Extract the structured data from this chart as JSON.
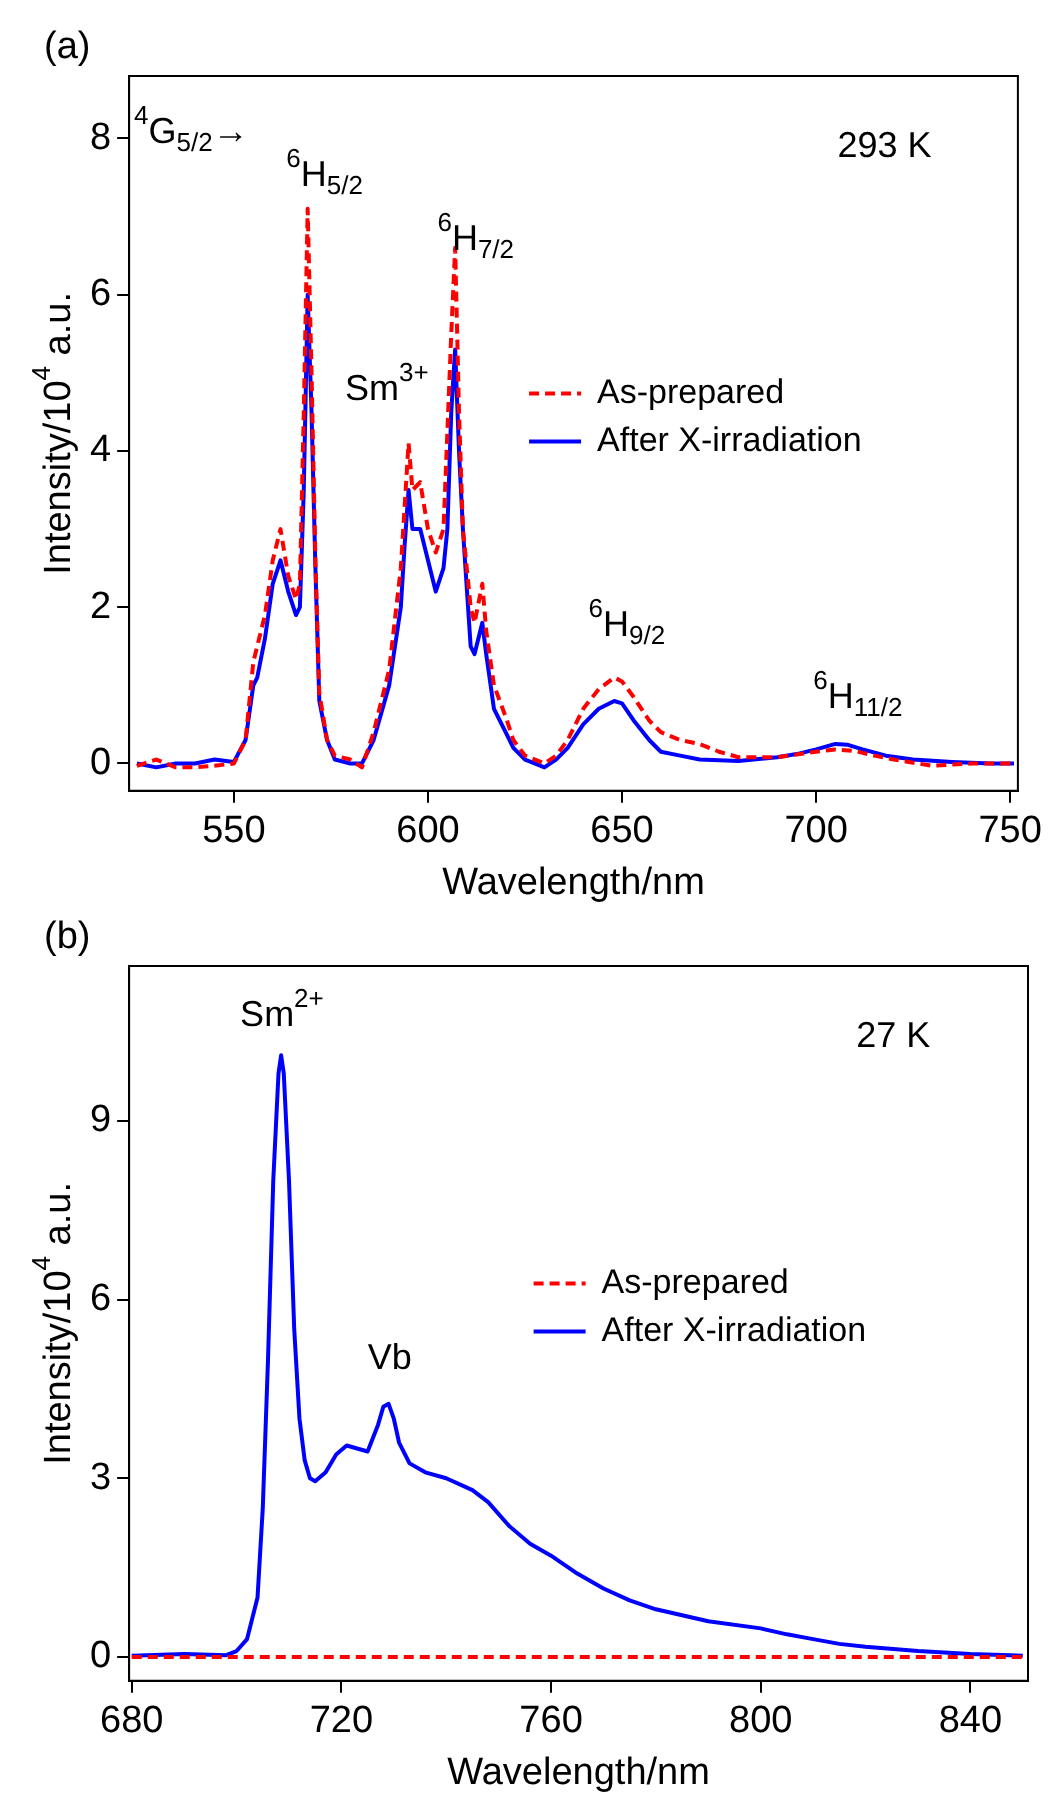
{
  "chart_data": [
    {
      "type": "line",
      "title": "(a)",
      "xlabel": "Wavelength/nm",
      "ylabel": "Intensity/10$^{4}$ a.u.",
      "xlim": [
        523,
        752
      ],
      "ylim": [
        -0.35,
        8.8
      ],
      "xticks": [
        550,
        600,
        650,
        700,
        750
      ],
      "yticks": [
        0,
        2,
        4,
        6,
        8
      ],
      "grid": false,
      "legend": "right",
      "marker": "none",
      "series": [
        {
          "name": "As-prepared",
          "color": "#ff0000",
          "line_style": "dashed",
          "x": [
            525,
            530,
            535,
            540,
            545,
            550,
            553,
            555,
            558,
            560,
            562,
            564,
            566,
            567,
            568,
            569,
            570,
            571,
            572,
            574,
            576,
            580,
            583,
            586,
            590,
            593,
            595,
            596,
            598,
            600,
            602,
            604,
            606,
            607,
            608,
            609,
            611,
            612,
            614,
            615,
            617,
            620,
            622,
            625,
            630,
            633,
            636,
            640,
            644,
            648,
            650,
            653,
            657,
            660,
            665,
            670,
            675,
            680,
            690,
            700,
            705,
            710,
            715,
            720,
            730,
            740,
            751
          ],
          "values": [
            -0.03,
            0.05,
            -0.05,
            -0.05,
            -0.03,
            0.0,
            0.3,
            1.3,
            1.9,
            2.6,
            3.0,
            2.4,
            2.1,
            2.3,
            4.5,
            7.1,
            5.0,
            2.6,
            0.9,
            0.3,
            0.1,
            0.05,
            -0.05,
            0.4,
            1.2,
            2.5,
            4.1,
            3.5,
            3.6,
            3.0,
            2.7,
            3.0,
            5.5,
            6.6,
            4.5,
            3.0,
            2.0,
            1.8,
            2.3,
            1.7,
            1.0,
            0.6,
            0.3,
            0.1,
            0.0,
            0.1,
            0.3,
            0.7,
            0.95,
            1.1,
            1.05,
            0.85,
            0.55,
            0.4,
            0.3,
            0.25,
            0.15,
            0.08,
            0.08,
            0.15,
            0.18,
            0.16,
            0.1,
            0.05,
            -0.03,
            0.0,
            0.0
          ]
        },
        {
          "name": "After X-irradiation",
          "color": "#0000ff",
          "line_style": "solid",
          "x": [
            525,
            530,
            535,
            540,
            545,
            550,
            553,
            555,
            556,
            558,
            560,
            562,
            564,
            566,
            567,
            568,
            569,
            570,
            571,
            572,
            574,
            576,
            580,
            583,
            586,
            590,
            593,
            594,
            595,
            596,
            598,
            600,
            602,
            604,
            605,
            606,
            607,
            608,
            609,
            611,
            612,
            614,
            615,
            617,
            620,
            622,
            625,
            630,
            633,
            636,
            640,
            644,
            648,
            650,
            653,
            657,
            660,
            665,
            670,
            680,
            690,
            695,
            700,
            705,
            708,
            712,
            718,
            725,
            735,
            745,
            751
          ],
          "values": [
            0.0,
            -0.05,
            0.0,
            0.0,
            0.05,
            0.02,
            0.3,
            1.0,
            1.1,
            1.6,
            2.3,
            2.6,
            2.2,
            1.9,
            2.0,
            3.5,
            6.0,
            4.5,
            2.5,
            0.8,
            0.3,
            0.05,
            0.0,
            0.0,
            0.3,
            1.0,
            2.0,
            2.8,
            3.5,
            3.0,
            3.0,
            2.6,
            2.2,
            2.5,
            3.0,
            4.5,
            5.3,
            4.0,
            3.0,
            1.5,
            1.4,
            1.8,
            1.4,
            0.7,
            0.4,
            0.2,
            0.05,
            -0.05,
            0.05,
            0.2,
            0.5,
            0.7,
            0.8,
            0.77,
            0.55,
            0.3,
            0.15,
            0.1,
            0.05,
            0.03,
            0.08,
            0.12,
            0.18,
            0.25,
            0.24,
            0.18,
            0.1,
            0.05,
            0.02,
            0.0,
            0.0
          ]
        }
      ],
      "annotations": [
        "$^{4}$G$_{5/2}$→",
        "$^{6}$H$_{5/2}$",
        "Sm$^{3+}$",
        "$^{6}$H$_{7/2}$",
        "$^{6}$H$_{9/2}$",
        "$^{6}$H$_{11/2}$",
        "293 K"
      ]
    },
    {
      "type": "line",
      "title": "(b)",
      "xlabel": "Wavelength/nm",
      "ylabel": "Intensity/10$^{4}$ a.u.",
      "xlim": [
        679.5,
        851
      ],
      "ylim": [
        -0.4,
        11.6
      ],
      "xticks": [
        680,
        720,
        760,
        800,
        840
      ],
      "yticks": [
        0,
        3,
        6,
        9
      ],
      "grid": false,
      "legend": "right",
      "marker": "none",
      "series": [
        {
          "name": "As-prepared",
          "color": "#ff0000",
          "line_style": "dashed",
          "x": [
            680,
            700,
            720,
            740,
            760,
            780,
            800,
            820,
            840,
            850
          ],
          "values": [
            0,
            0,
            0,
            0,
            0,
            0,
            0,
            0,
            0,
            0
          ]
        },
        {
          "name": "After X-irradiation",
          "color": "#0000ff",
          "line_style": "solid",
          "x": [
            680,
            690,
            698,
            700,
            702,
            704,
            705,
            706,
            707,
            708,
            708.5,
            709,
            710,
            711,
            712,
            713,
            714,
            715,
            717,
            719,
            721,
            723,
            725,
            727,
            728,
            729,
            730,
            731,
            733,
            736,
            740,
            745,
            748,
            752,
            756,
            760,
            765,
            770,
            775,
            780,
            790,
            800,
            805,
            810,
            815,
            820,
            830,
            840,
            850
          ],
          "values": [
            0.02,
            0.05,
            0.03,
            0.1,
            0.3,
            1.0,
            2.5,
            5.0,
            8.0,
            9.8,
            10.1,
            9.8,
            8.0,
            5.5,
            4.0,
            3.3,
            3.0,
            2.95,
            3.1,
            3.4,
            3.55,
            3.5,
            3.45,
            3.9,
            4.2,
            4.25,
            4.0,
            3.6,
            3.25,
            3.1,
            3.0,
            2.8,
            2.6,
            2.2,
            1.9,
            1.7,
            1.4,
            1.15,
            0.95,
            0.8,
            0.6,
            0.48,
            0.38,
            0.3,
            0.22,
            0.17,
            0.1,
            0.05,
            0.02
          ]
        }
      ],
      "annotations": [
        "Sm$^{2+}$",
        "Vb",
        "27 K"
      ]
    }
  ]
}
